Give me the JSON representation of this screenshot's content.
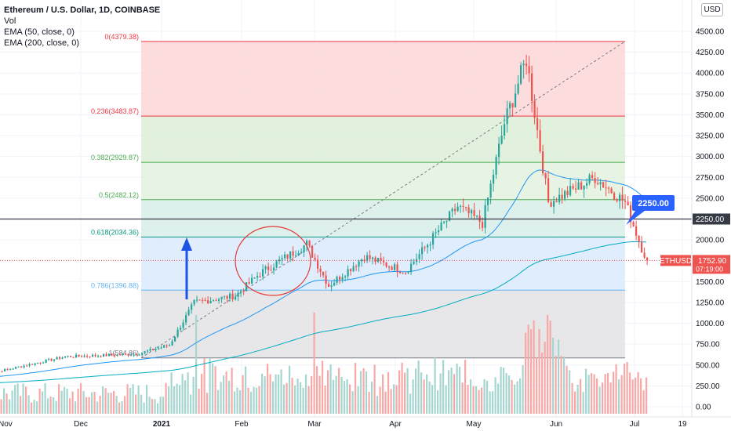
{
  "header": {
    "symbol_title": "Ethereum / U.S. Dollar, 1D, COINBASE",
    "volume_label": "Vol",
    "ema50_label": "EMA (50, close, 0)",
    "ema200_label": "EMA (200, close, 0)",
    "currency_button": "USD"
  },
  "colors": {
    "up": "#26a69a",
    "down": "#ef5350",
    "ema50": "#2196f3",
    "ema200": "#00acc1",
    "arrow": "#1e53e5",
    "marker_bg": "#2962ff"
  },
  "chart_data": {
    "type": "candlestick",
    "y_axis": {
      "ticks": [
        "4500.00",
        "4250.00",
        "4000.00",
        "3750.00",
        "3500.00",
        "3250.00",
        "3000.00",
        "2750.00",
        "2500.00",
        "2250.00",
        "2000.00",
        "1750.00",
        "1500.00",
        "1250.00",
        "1000.00",
        "750.00",
        "500.00",
        "250.00",
        "0.00"
      ],
      "range": [
        0,
        4500
      ]
    },
    "x_axis": {
      "ticks": [
        "Nov",
        "Dec",
        "2021",
        "Feb",
        "Mar",
        "Apr",
        "May",
        "Jun",
        "Jul",
        "19"
      ]
    },
    "fibonacci": {
      "levels": [
        {
          "ratio": "0",
          "price": 4379.38,
          "label": "0(4379.38)",
          "color": "#f23645"
        },
        {
          "ratio": "0.236",
          "price": 3483.87,
          "label": "0.236(3483.87)",
          "color": "#f23645"
        },
        {
          "ratio": "0.382",
          "price": 2929.87,
          "label": "0.382(2929.87)",
          "color": "#4caf50"
        },
        {
          "ratio": "0.5",
          "price": 2482.12,
          "label": "0.5(2482.12)",
          "color": "#4caf50"
        },
        {
          "ratio": "0.618",
          "price": 2034.36,
          "label": "0.618(2034.36)",
          "color": "#089981"
        },
        {
          "ratio": "0.786",
          "price": 1396.88,
          "label": "0.786(1396.88)",
          "color": "#64b5f6"
        },
        {
          "ratio": "1",
          "price": 584.86,
          "label": "1(584.86)",
          "color": "#787b86"
        }
      ]
    },
    "horizontal_line": {
      "price": 2250.0,
      "label": "2250.00",
      "axis_label": "2250.00"
    },
    "last_price": {
      "symbol": "ETHUSD",
      "price": 1752.9,
      "price_label": "1752.90",
      "countdown": "07:19:00"
    },
    "ohlc_waypoints": [
      {
        "date": "Oct 26",
        "close": 390
      },
      {
        "date": "Nov 24",
        "close": 600
      },
      {
        "date": "Dec 20",
        "close": 630
      },
      {
        "date": "Jan 01",
        "close": 740
      },
      {
        "date": "Jan 10",
        "close": 1250
      },
      {
        "date": "Jan 25",
        "close": 1330
      },
      {
        "date": "Feb 03",
        "close": 1600
      },
      {
        "date": "Feb 20",
        "close": 1950
      },
      {
        "date": "Feb 28",
        "close": 1450
      },
      {
        "date": "Mar 13",
        "close": 1800
      },
      {
        "date": "Mar 28",
        "close": 1620
      },
      {
        "date": "Apr 16",
        "close": 2400
      },
      {
        "date": "Apr 25",
        "close": 2200
      },
      {
        "date": "May 03",
        "close": 3400
      },
      {
        "date": "May 11",
        "close": 4170
      },
      {
        "date": "May 19",
        "close": 2450
      },
      {
        "date": "May 28",
        "close": 2600
      },
      {
        "date": "Jun 05",
        "close": 2750
      },
      {
        "date": "Jun 16",
        "close": 2450
      },
      {
        "date": "Jun 22",
        "close": 1900
      },
      {
        "date": "Jun 24",
        "close": 1753
      }
    ],
    "volume_spikes": [
      {
        "date": "Jan 11"
      },
      {
        "date": "Feb 23"
      },
      {
        "date": "May 19"
      }
    ]
  }
}
